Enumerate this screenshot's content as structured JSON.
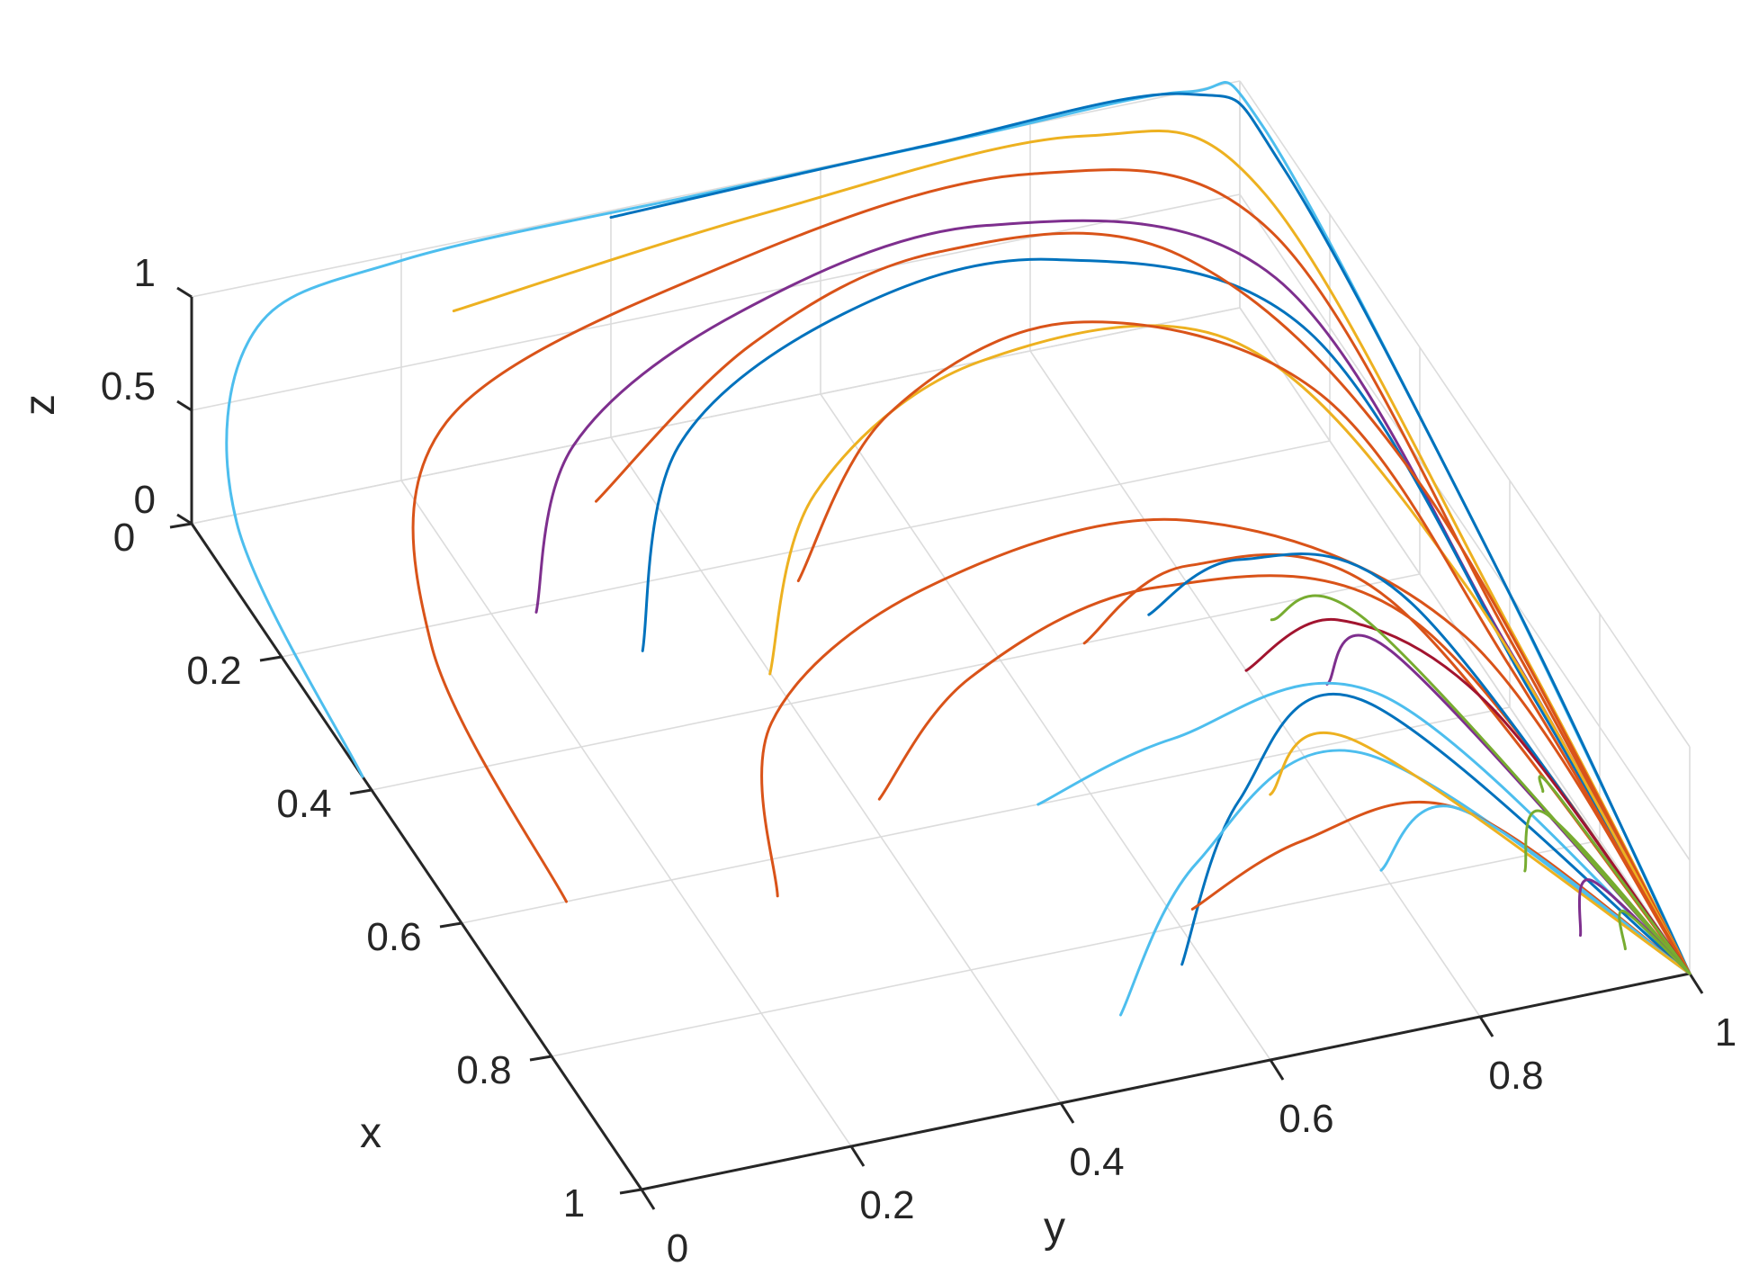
{
  "chart_data": {
    "type": "line",
    "title": "",
    "xlabel": "x",
    "ylabel": "y",
    "zlabel": "z",
    "xlim": [
      0,
      1
    ],
    "ylim": [
      0,
      1
    ],
    "zlim": [
      0,
      1
    ],
    "x_ticks": [
      "0",
      "0.2",
      "0.4",
      "0.6",
      "0.8",
      "1"
    ],
    "y_ticks": [
      "0",
      "0.2",
      "0.4",
      "0.6",
      "0.8",
      "1"
    ],
    "z_ticks": [
      "0",
      "0.5",
      "1"
    ],
    "grid": true,
    "colors": [
      "#0072BD",
      "#D95319",
      "#EDB120",
      "#7E2F8E",
      "#77AC30",
      "#4DBEEE",
      "#A2142F"
    ],
    "note_endpoint": [
      1,
      1,
      0
    ],
    "series": [
      {
        "color": "#4DBEEE",
        "points": [
          [
            0.38,
            0.0,
            0.0
          ],
          [
            0.1,
            0.0,
            0.3
          ],
          [
            0.02,
            0.05,
            0.85
          ],
          [
            0.0,
            0.2,
            0.97
          ],
          [
            0.0,
            0.5,
            0.99
          ],
          [
            0.0,
            0.75,
            1.0
          ],
          [
            0.0,
            0.95,
            1.0
          ],
          [
            0.05,
            1.0,
            0.95
          ],
          [
            0.5,
            1.0,
            0.6
          ],
          [
            0.85,
            1.0,
            0.2
          ],
          [
            1.0,
            1.0,
            0.0
          ]
        ]
      },
      {
        "color": "#0072BD",
        "points": [
          [
            0.0,
            0.4,
            0.97
          ],
          [
            0.0,
            0.7,
            1.0
          ],
          [
            0.0,
            0.95,
            0.99
          ],
          [
            0.1,
            1.0,
            0.9
          ],
          [
            0.6,
            1.0,
            0.5
          ],
          [
            1.0,
            1.0,
            0.0
          ]
        ]
      },
      {
        "color": "#EDB120",
        "points": [
          [
            0.0,
            0.25,
            0.7
          ],
          [
            0.0,
            0.55,
            0.85
          ],
          [
            0.0,
            0.85,
            0.9
          ],
          [
            0.1,
            0.98,
            0.82
          ],
          [
            0.6,
            1.0,
            0.35
          ],
          [
            1.0,
            1.0,
            0.0
          ]
        ]
      },
      {
        "color": "#D95319",
        "points": [
          [
            0.6,
            0.1,
            0.0
          ],
          [
            0.3,
            0.1,
            0.25
          ],
          [
            0.1,
            0.2,
            0.55
          ],
          [
            0.02,
            0.5,
            0.72
          ],
          [
            0.0,
            0.8,
            0.78
          ],
          [
            0.12,
            0.98,
            0.7
          ],
          [
            0.6,
            1.0,
            0.3
          ],
          [
            1.0,
            1.0,
            0.0
          ]
        ]
      },
      {
        "color": "#7E2F8E",
        "points": [
          [
            0.3,
            0.2,
            0.3
          ],
          [
            0.15,
            0.3,
            0.5
          ],
          [
            0.05,
            0.5,
            0.6
          ],
          [
            0.02,
            0.75,
            0.66
          ],
          [
            0.15,
            0.97,
            0.6
          ],
          [
            0.6,
            1.0,
            0.25
          ],
          [
            1.0,
            1.0,
            0.0
          ]
        ]
      },
      {
        "color": "#0072BD",
        "points": [
          [
            0.35,
            0.28,
            0.2
          ],
          [
            0.15,
            0.4,
            0.4
          ],
          [
            0.05,
            0.6,
            0.5
          ],
          [
            0.05,
            0.8,
            0.55
          ],
          [
            0.2,
            0.98,
            0.5
          ],
          [
            0.65,
            1.0,
            0.2
          ],
          [
            1.0,
            1.0,
            0.0
          ]
        ]
      },
      {
        "color": "#D95319",
        "points": [
          [
            0.2,
            0.3,
            0.4
          ],
          [
            0.08,
            0.5,
            0.55
          ],
          [
            0.03,
            0.7,
            0.62
          ],
          [
            0.1,
            0.9,
            0.62
          ],
          [
            0.4,
            1.0,
            0.4
          ],
          [
            1.0,
            1.0,
            0.0
          ]
        ]
      },
      {
        "color": "#EDB120",
        "points": [
          [
            0.4,
            0.38,
            0.15
          ],
          [
            0.22,
            0.5,
            0.3
          ],
          [
            0.12,
            0.7,
            0.4
          ],
          [
            0.18,
            0.92,
            0.45
          ],
          [
            0.5,
            1.0,
            0.25
          ],
          [
            1.0,
            1.0,
            0.0
          ]
        ]
      },
      {
        "color": "#D95319",
        "points": [
          [
            0.3,
            0.45,
            0.2
          ],
          [
            0.15,
            0.6,
            0.35
          ],
          [
            0.1,
            0.8,
            0.42
          ],
          [
            0.25,
            0.97,
            0.38
          ],
          [
            0.6,
            1.0,
            0.18
          ],
          [
            1.0,
            1.0,
            0.0
          ]
        ]
      },
      {
        "color": "#D95319",
        "points": [
          [
            0.65,
            0.28,
            0.0
          ],
          [
            0.45,
            0.36,
            0.1
          ],
          [
            0.35,
            0.55,
            0.22
          ],
          [
            0.35,
            0.8,
            0.28
          ],
          [
            0.55,
            0.98,
            0.18
          ],
          [
            1.0,
            1.0,
            0.0
          ]
        ]
      },
      {
        "color": "#D95319",
        "points": [
          [
            0.55,
            0.42,
            0.0
          ],
          [
            0.45,
            0.55,
            0.12
          ],
          [
            0.4,
            0.75,
            0.18
          ],
          [
            0.5,
            0.95,
            0.14
          ],
          [
            1.0,
            1.0,
            0.0
          ]
        ]
      },
      {
        "color": "#D95319",
        "points": [
          [
            0.4,
            0.68,
            0.0
          ],
          [
            0.35,
            0.8,
            0.08
          ],
          [
            0.45,
            0.95,
            0.08
          ],
          [
            1.0,
            1.0,
            0.0
          ]
        ]
      },
      {
        "color": "#0072BD",
        "points": [
          [
            0.38,
            0.75,
            0.0
          ],
          [
            0.35,
            0.85,
            0.06
          ],
          [
            0.45,
            0.97,
            0.05
          ],
          [
            1.0,
            1.0,
            0.0
          ]
        ]
      },
      {
        "color": "#A2142F",
        "points": [
          [
            0.48,
            0.8,
            0.0
          ],
          [
            0.45,
            0.9,
            0.04
          ],
          [
            0.6,
            0.98,
            0.03
          ],
          [
            1.0,
            1.0,
            0.0
          ]
        ]
      },
      {
        "color": "#7E2F8E",
        "points": [
          [
            0.52,
            0.86,
            0.0
          ],
          [
            0.5,
            0.93,
            0.02
          ],
          [
            1.0,
            1.0,
            0.0
          ]
        ]
      },
      {
        "color": "#77AC30",
        "points": [
          [
            0.42,
            0.85,
            0.0
          ],
          [
            0.45,
            0.93,
            0.0
          ],
          [
            1.0,
            1.0,
            0.0
          ]
        ]
      },
      {
        "color": "#4DBEEE",
        "points": [
          [
            0.6,
            0.55,
            0.0
          ],
          [
            0.55,
            0.7,
            0.0
          ],
          [
            0.55,
            0.9,
            0.0
          ],
          [
            1.0,
            1.0,
            0.0
          ]
        ]
      },
      {
        "color": "#0072BD",
        "points": [
          [
            0.85,
            0.58,
            0.0
          ],
          [
            0.65,
            0.72,
            0.0
          ],
          [
            0.55,
            0.88,
            0.0
          ],
          [
            1.0,
            1.0,
            0.0
          ]
        ]
      },
      {
        "color": "#4DBEEE",
        "points": [
          [
            0.9,
            0.5,
            0.0
          ],
          [
            0.72,
            0.65,
            0.0
          ],
          [
            0.62,
            0.85,
            0.0
          ],
          [
            1.0,
            1.0,
            0.0
          ]
        ]
      },
      {
        "color": "#D95319",
        "points": [
          [
            0.78,
            0.62,
            0.0
          ],
          [
            0.72,
            0.75,
            0.0
          ],
          [
            0.72,
            0.9,
            0.0
          ],
          [
            1.0,
            1.0,
            0.0
          ]
        ]
      },
      {
        "color": "#4DBEEE",
        "points": [
          [
            0.78,
            0.8,
            0.0
          ],
          [
            0.72,
            0.9,
            0.0
          ],
          [
            1.0,
            1.0,
            0.0
          ]
        ]
      },
      {
        "color": "#EDB120",
        "points": [
          [
            0.65,
            0.75,
            0.0
          ],
          [
            0.6,
            0.85,
            0.0
          ],
          [
            1.0,
            1.0,
            0.0
          ]
        ]
      },
      {
        "color": "#77AC30",
        "points": [
          [
            0.82,
            0.92,
            0.0
          ],
          [
            0.75,
            0.97,
            0.0
          ],
          [
            1.0,
            1.0,
            0.0
          ]
        ]
      },
      {
        "color": "#7E2F8E",
        "points": [
          [
            0.92,
            0.93,
            0.0
          ],
          [
            0.85,
            0.97,
            0.0
          ],
          [
            1.0,
            1.0,
            0.0
          ]
        ]
      },
      {
        "color": "#77AC30",
        "points": [
          [
            0.95,
            0.96,
            0.0
          ],
          [
            0.9,
            0.98,
            0.0
          ],
          [
            1.0,
            1.0,
            0.0
          ]
        ]
      },
      {
        "color": "#77AC30",
        "points": [
          [
            0.72,
            0.98,
            0.0
          ],
          [
            0.72,
            0.99,
            0.0
          ],
          [
            1.0,
            1.0,
            0.0
          ]
        ]
      }
    ]
  }
}
